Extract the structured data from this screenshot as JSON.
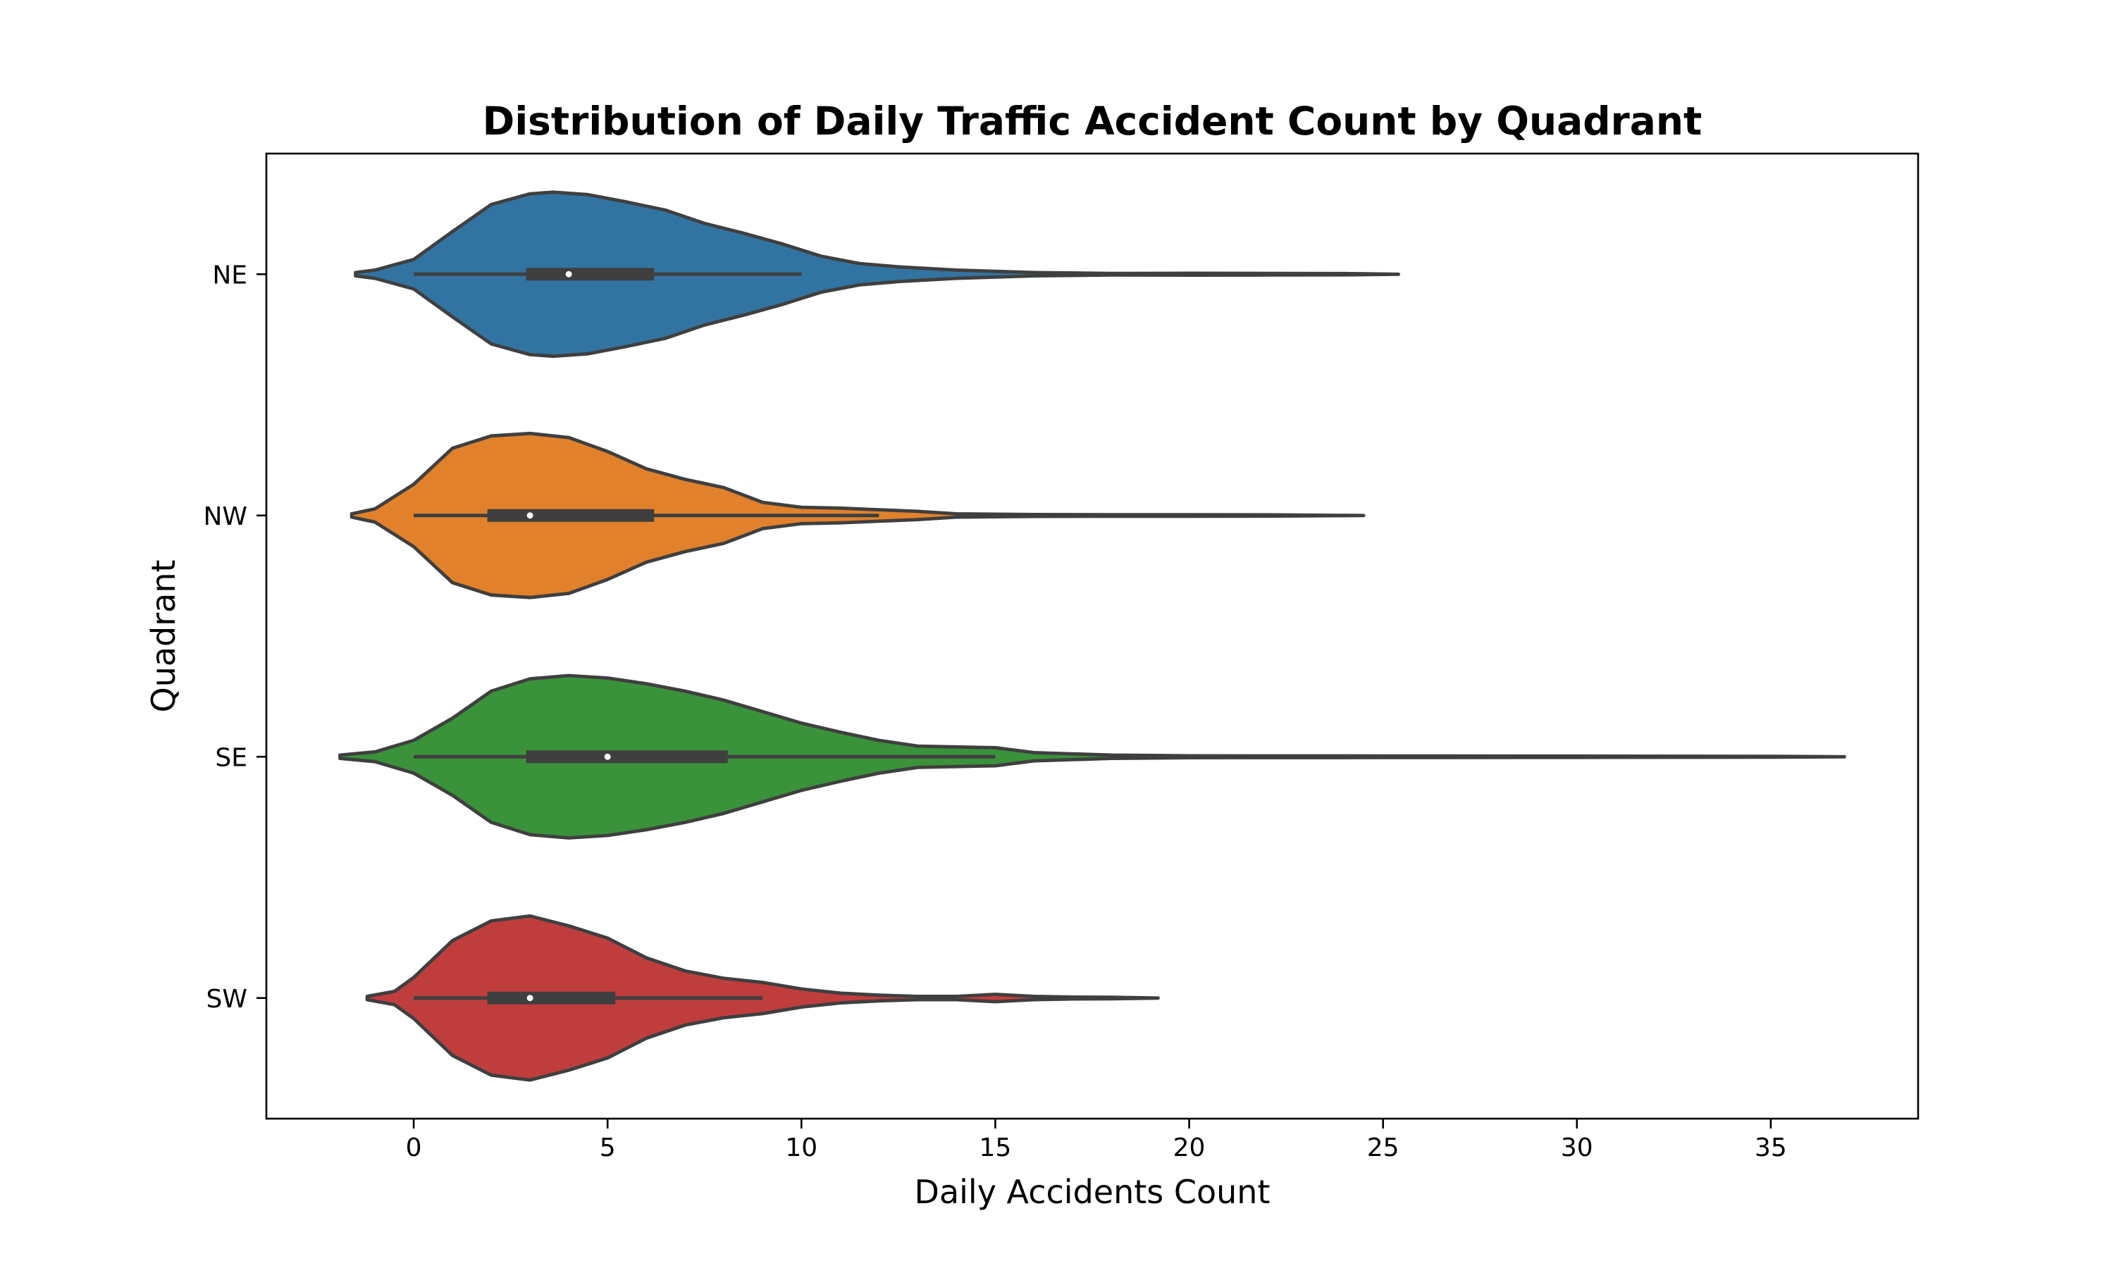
{
  "chart_data": {
    "type": "violin",
    "orientation": "horizontal",
    "title": "Distribution of Daily Traffic Accident Count by Quadrant",
    "xlabel": "Daily Accidents Count",
    "ylabel": "Quadrant",
    "xlim": [
      -3.8,
      38.8
    ],
    "xticks": [
      0,
      5,
      10,
      15,
      20,
      25,
      30,
      35
    ],
    "xtick_labels": [
      "0",
      "5",
      "10",
      "15",
      "20",
      "25",
      "30",
      "35"
    ],
    "categories": [
      "NE",
      "NW",
      "SE",
      "SW"
    ],
    "grid": false,
    "legend": false,
    "series": [
      {
        "category": "NE",
        "color": "#3274a1",
        "min": 0,
        "q1": 2.9,
        "median": 4,
        "q3": 6.2,
        "whisker_high": 10,
        "max": 25.4,
        "kde_start": -1.5,
        "density": [
          [
            -1.5,
            0.02
          ],
          [
            -1,
            0.05
          ],
          [
            0,
            0.18
          ],
          [
            1,
            0.52
          ],
          [
            2,
            0.85
          ],
          [
            3,
            0.98
          ],
          [
            3.6,
            1.0
          ],
          [
            4.5,
            0.97
          ],
          [
            5.5,
            0.88
          ],
          [
            6.5,
            0.78
          ],
          [
            7.5,
            0.62
          ],
          [
            8.5,
            0.5
          ],
          [
            9.5,
            0.37
          ],
          [
            10.5,
            0.22
          ],
          [
            11.5,
            0.13
          ],
          [
            12.5,
            0.09
          ],
          [
            14,
            0.05
          ],
          [
            16,
            0.02
          ],
          [
            18,
            0.01
          ],
          [
            20,
            0.012
          ],
          [
            22,
            0.01
          ],
          [
            24,
            0.008
          ],
          [
            25.4,
            0.0
          ]
        ]
      },
      {
        "category": "NW",
        "color": "#e1812c",
        "min": 0,
        "q1": 1.9,
        "median": 3,
        "q3": 6.2,
        "whisker_high": 12,
        "max": 24.5,
        "kde_start": -1.6,
        "density": [
          [
            -1.6,
            0.02
          ],
          [
            -1,
            0.08
          ],
          [
            0,
            0.38
          ],
          [
            1,
            0.82
          ],
          [
            2,
            0.97
          ],
          [
            3,
            1.0
          ],
          [
            4,
            0.95
          ],
          [
            5,
            0.78
          ],
          [
            6,
            0.57
          ],
          [
            7,
            0.44
          ],
          [
            8,
            0.34
          ],
          [
            9,
            0.16
          ],
          [
            10,
            0.1
          ],
          [
            11,
            0.09
          ],
          [
            12,
            0.07
          ],
          [
            13,
            0.05
          ],
          [
            14,
            0.02
          ],
          [
            16,
            0.012
          ],
          [
            18,
            0.01
          ],
          [
            20,
            0.01
          ],
          [
            22,
            0.008
          ],
          [
            24.5,
            0.0
          ]
        ]
      },
      {
        "category": "SE",
        "color": "#3a923a",
        "min": 0,
        "q1": 2.9,
        "median": 5,
        "q3": 8.1,
        "whisker_high": 15,
        "max": 36.9,
        "kde_start": -1.9,
        "density": [
          [
            -1.9,
            0.02
          ],
          [
            -1,
            0.06
          ],
          [
            0,
            0.2
          ],
          [
            1,
            0.47
          ],
          [
            2,
            0.8
          ],
          [
            3,
            0.95
          ],
          [
            4,
            0.99
          ],
          [
            5,
            0.96
          ],
          [
            6,
            0.89
          ],
          [
            7,
            0.8
          ],
          [
            8,
            0.69
          ],
          [
            9,
            0.55
          ],
          [
            10,
            0.41
          ],
          [
            11,
            0.3
          ],
          [
            12,
            0.2
          ],
          [
            13,
            0.13
          ],
          [
            14,
            0.12
          ],
          [
            15,
            0.11
          ],
          [
            16,
            0.05
          ],
          [
            18,
            0.02
          ],
          [
            20,
            0.012
          ],
          [
            25,
            0.01
          ],
          [
            30,
            0.008
          ],
          [
            35,
            0.006
          ],
          [
            36.9,
            0.0
          ]
        ]
      },
      {
        "category": "SW",
        "color": "#c03d3e",
        "min": 0,
        "q1": 1.9,
        "median": 3,
        "q3": 5.2,
        "whisker_high": 9,
        "max": 19.2,
        "kde_start": -1.2,
        "density": [
          [
            -1.2,
            0.02
          ],
          [
            -0.5,
            0.08
          ],
          [
            0,
            0.25
          ],
          [
            1,
            0.7
          ],
          [
            2,
            0.94
          ],
          [
            3,
            1.0
          ],
          [
            4,
            0.88
          ],
          [
            5,
            0.73
          ],
          [
            6,
            0.49
          ],
          [
            7,
            0.33
          ],
          [
            8,
            0.24
          ],
          [
            9,
            0.19
          ],
          [
            10,
            0.11
          ],
          [
            11,
            0.06
          ],
          [
            12,
            0.035
          ],
          [
            13,
            0.02
          ],
          [
            14,
            0.02
          ],
          [
            15,
            0.045
          ],
          [
            16,
            0.02
          ],
          [
            17,
            0.012
          ],
          [
            18,
            0.01
          ],
          [
            19.2,
            0.0
          ]
        ]
      }
    ]
  }
}
